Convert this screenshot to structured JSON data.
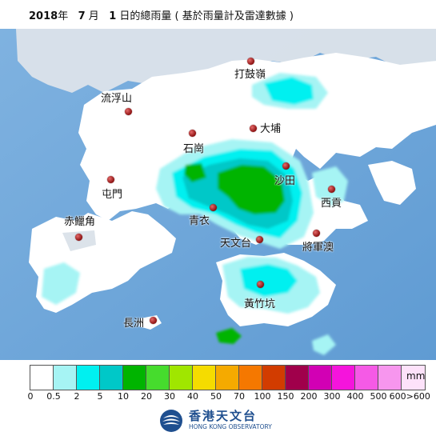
{
  "title": {
    "year": "2018",
    "year_suffix": "年",
    "month": "7",
    "month_suffix": "月",
    "day": "1",
    "rest": "日的總雨量 ( 基於雨量計及雷達數據 )"
  },
  "places": [
    {
      "name": "打鼓嶺"
    },
    {
      "name": "流浮山"
    },
    {
      "name": "大埔"
    },
    {
      "name": "石崗"
    },
    {
      "name": "沙田"
    },
    {
      "name": "屯門"
    },
    {
      "name": "西貢"
    },
    {
      "name": "青衣"
    },
    {
      "name": "赤鱲角"
    },
    {
      "name": "天文台"
    },
    {
      "name": "將軍澳"
    },
    {
      "name": "黃竹坑"
    },
    {
      "name": "長洲"
    }
  ],
  "legend": {
    "unit": "mm",
    "colors": [
      "#ffffff",
      "#a6f4f4",
      "#00f0f0",
      "#00c8c8",
      "#00b400",
      "#46dc2d",
      "#a0e600",
      "#f5dc00",
      "#f5aa00",
      "#f57800",
      "#d23c00",
      "#a0004b",
      "#d200b4",
      "#f514dc",
      "#f55ae6",
      "#f796ee",
      "#fde2fa"
    ],
    "ticks": [
      "0",
      "0.5",
      "2",
      "5",
      "10",
      "20",
      "30",
      "40",
      "50",
      "70",
      "100",
      "150",
      "200",
      "300",
      "400",
      "500",
      "600>600"
    ]
  },
  "logo": {
    "cn": "香港天文台",
    "en": "HONG KONG OBSERVATORY",
    "icon": "observatory-logo-icon"
  },
  "colors": {
    "sea": "#6fa8dc",
    "land": "#ffffff"
  }
}
